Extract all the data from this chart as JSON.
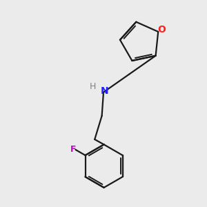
{
  "background_color": "#ebebeb",
  "bond_color": "#1a1a1a",
  "N_color": "#2020ff",
  "O_color": "#ff2020",
  "F_color": "#cc00cc",
  "H_color": "#808080",
  "figsize": [
    3.0,
    3.0
  ],
  "dpi": 100,
  "xlim": [
    0,
    10
  ],
  "ylim": [
    0,
    10
  ]
}
